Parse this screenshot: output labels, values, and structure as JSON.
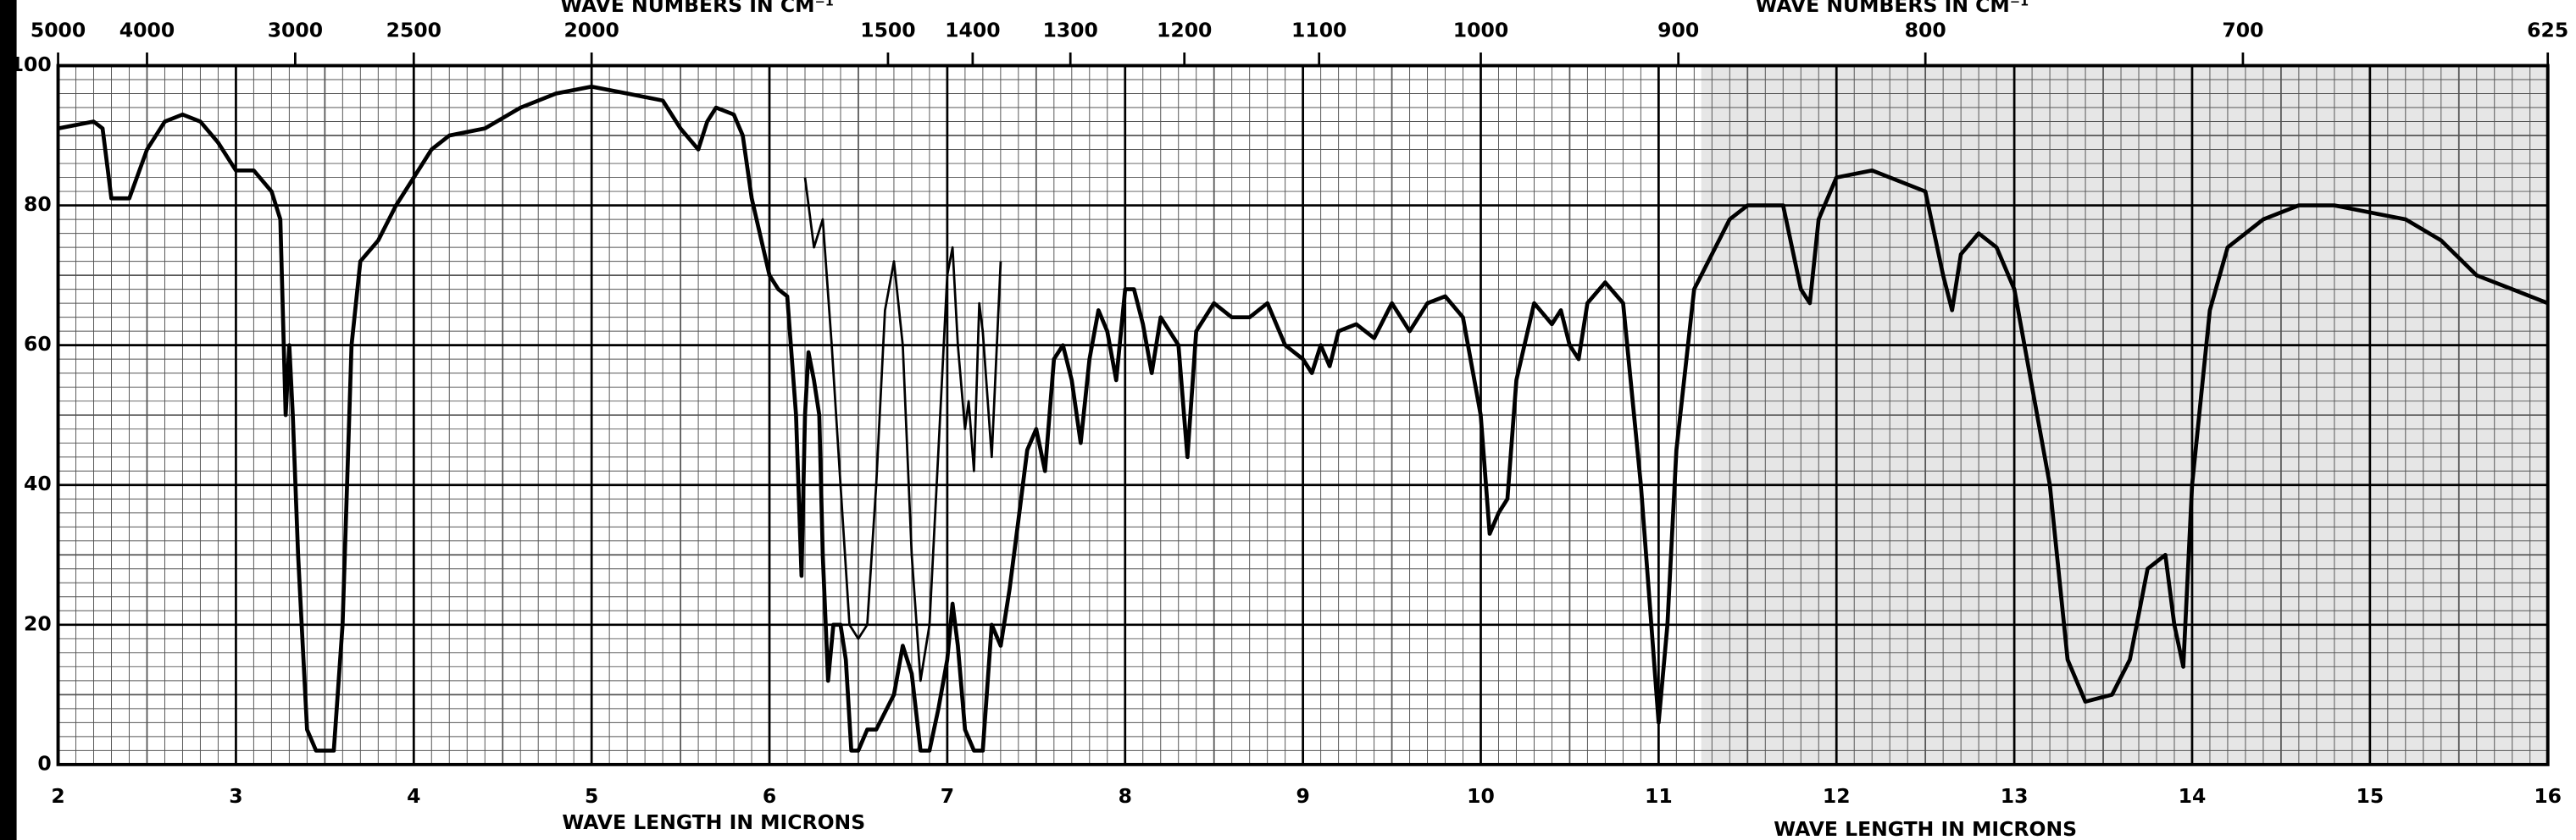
{
  "chart_data": {
    "type": "line",
    "x_label": "WAVE LENGTH IN MICRONS",
    "x2_label": "WAVE NUMBERS IN CM⁻¹",
    "xlim": [
      2,
      16
    ],
    "xticks": [
      2,
      3,
      4,
      5,
      6,
      7,
      8,
      9,
      10,
      11,
      12,
      13,
      14,
      15,
      16
    ],
    "ylim": [
      0,
      100
    ],
    "yticks": [
      0,
      20,
      40,
      60,
      80,
      100
    ],
    "x2lim": [
      5000,
      625
    ],
    "x2ticks": [
      5000,
      4000,
      3000,
      2500,
      2000,
      1500,
      1400,
      1300,
      1200,
      1100,
      1000,
      900,
      800,
      700,
      625
    ],
    "grid": true,
    "series": [
      {
        "color": "#000000",
        "x": [
          2.0,
          2.2,
          2.25,
          2.3,
          2.4,
          2.5,
          2.6,
          2.7,
          2.8,
          2.9,
          3.0,
          3.1,
          3.2,
          3.25,
          3.28,
          3.3,
          3.32,
          3.35,
          3.4,
          3.45,
          3.55,
          3.6,
          3.65,
          3.7,
          3.8,
          3.9,
          4.0,
          4.1,
          4.2,
          4.4,
          4.6,
          4.8,
          5.0,
          5.2,
          5.4,
          5.5,
          5.6,
          5.65,
          5.7,
          5.8,
          5.85,
          5.9,
          6.0,
          6.05,
          6.1,
          6.15,
          6.18,
          6.2,
          6.22,
          6.25,
          6.28,
          6.3,
          6.33,
          6.36,
          6.4,
          6.43,
          6.46,
          6.5,
          6.55,
          6.6,
          6.7,
          6.75,
          6.8,
          6.85,
          6.9,
          6.95,
          7.0,
          7.03,
          7.06,
          7.1,
          7.15,
          7.2,
          7.25,
          7.3,
          7.35,
          7.4,
          7.45,
          7.5,
          7.55,
          7.6,
          7.65,
          7.7,
          7.75,
          7.8,
          7.85,
          7.9,
          7.95,
          8.0,
          8.05,
          8.1,
          8.15,
          8.2,
          8.3,
          8.35,
          8.4,
          8.5,
          8.6,
          8.7,
          8.8,
          8.9,
          9.0,
          9.05,
          9.1,
          9.15,
          9.2,
          9.3,
          9.4,
          9.5,
          9.6,
          9.7,
          9.8,
          9.9,
          10.0,
          10.05,
          10.1,
          10.15,
          10.2,
          10.3,
          10.4,
          10.45,
          10.5,
          10.55,
          10.6,
          10.7,
          10.8,
          10.9,
          11.0,
          11.05,
          11.1,
          11.2,
          11.4,
          11.5,
          11.7,
          11.8,
          11.85,
          11.9,
          12.0,
          12.2,
          12.5,
          12.6,
          12.65,
          12.7,
          12.8,
          12.9,
          13.0,
          13.2,
          13.3,
          13.4,
          13.55,
          13.65,
          13.75,
          13.85,
          13.9,
          13.95,
          14.0,
          14.1,
          14.2,
          14.4,
          14.6,
          14.8,
          15.0,
          15.2,
          15.4,
          15.6,
          15.8,
          16.0
        ],
        "values": [
          91,
          92,
          91,
          81,
          81,
          88,
          92,
          93,
          92,
          89,
          85,
          85,
          82,
          78,
          50,
          60,
          50,
          30,
          5,
          2,
          2,
          20,
          60,
          72,
          75,
          80,
          84,
          88,
          90,
          91,
          94,
          96,
          97,
          96,
          95,
          91,
          88,
          92,
          94,
          93,
          90,
          81,
          70,
          68,
          67,
          50,
          27,
          50,
          59,
          55,
          50,
          30,
          12,
          20,
          20,
          15,
          2,
          2,
          5,
          5,
          10,
          17,
          13,
          2,
          2,
          8,
          15,
          23,
          17,
          5,
          2,
          2,
          20,
          17,
          25,
          35,
          45,
          48,
          42,
          58,
          60,
          55,
          46,
          58,
          65,
          62,
          55,
          68,
          68,
          63,
          56,
          64,
          60,
          44,
          62,
          66,
          64,
          64,
          66,
          60,
          58,
          56,
          60,
          57,
          62,
          63,
          61,
          66,
          62,
          66,
          67,
          64,
          50,
          33,
          36,
          38,
          55,
          66,
          63,
          65,
          60,
          58,
          66,
          69,
          66,
          40,
          6,
          20,
          45,
          68,
          78,
          80,
          80,
          68,
          66,
          78,
          84,
          85,
          82,
          70,
          65,
          73,
          76,
          74,
          68,
          40,
          15,
          9,
          10,
          15,
          28,
          30,
          20,
          14,
          40,
          65,
          74,
          78,
          80,
          80,
          79,
          78,
          75,
          70,
          68,
          66
        ]
      },
      {
        "color": "#000000",
        "x": [
          6.2,
          6.25,
          6.3,
          6.35,
          6.4,
          6.45,
          6.5,
          6.55,
          6.6,
          6.65,
          6.7,
          6.75,
          6.8,
          6.85,
          6.9,
          6.95,
          7.0,
          7.03,
          7.06,
          7.1,
          7.12,
          7.15,
          7.18,
          7.2,
          7.25,
          7.3
        ],
        "values": [
          84,
          74,
          78,
          60,
          40,
          20,
          18,
          20,
          40,
          65,
          72,
          60,
          30,
          12,
          20,
          45,
          70,
          74,
          60,
          48,
          52,
          42,
          66,
          62,
          44,
          72
        ]
      }
    ]
  }
}
